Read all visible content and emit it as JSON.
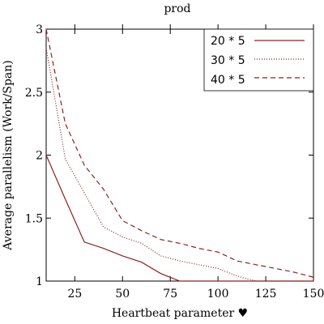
{
  "chart_data": {
    "type": "line",
    "title": "prod",
    "xlabel": "Heartbeat parameter ♥",
    "ylabel": "Average parallelism (Work/Span)",
    "xlim": [
      10,
      150
    ],
    "ylim": [
      1,
      3
    ],
    "xticks": [
      25,
      50,
      75,
      100,
      125,
      150
    ],
    "yticks": [
      1,
      1.5,
      2,
      2.5,
      3
    ],
    "xtick_labels": [
      "25",
      "50",
      "75",
      "100",
      "125",
      "150"
    ],
    "ytick_labels": [
      "1",
      "1.5",
      "2",
      "2.5",
      "3"
    ],
    "grid": false,
    "legend_position": "top-right",
    "series_color": "#8b2323",
    "series": [
      {
        "name": "20 * 5",
        "dash": "solid",
        "x": [
          10,
          20,
          30,
          40,
          50,
          60,
          70,
          80,
          90,
          100,
          110,
          120,
          130,
          140,
          150
        ],
        "values": [
          2.0,
          1.65,
          1.31,
          1.26,
          1.2,
          1.15,
          1.06,
          1.0,
          1.0,
          1.0,
          1.0,
          1.0,
          1.0,
          1.0,
          1.0
        ]
      },
      {
        "name": "30 * 5",
        "dash": "dotted",
        "x": [
          10,
          20,
          30,
          40,
          50,
          60,
          70,
          80,
          90,
          100,
          110,
          120,
          130,
          140,
          150
        ],
        "values": [
          2.85,
          1.97,
          1.7,
          1.43,
          1.35,
          1.3,
          1.2,
          1.16,
          1.13,
          1.1,
          1.04,
          1.0,
          1.0,
          1.0,
          1.0
        ]
      },
      {
        "name": "40 * 5",
        "dash": "dashed",
        "x": [
          10,
          20,
          30,
          40,
          50,
          60,
          70,
          80,
          90,
          100,
          110,
          120,
          130,
          140,
          150
        ],
        "values": [
          3.0,
          2.25,
          1.92,
          1.73,
          1.48,
          1.4,
          1.33,
          1.3,
          1.26,
          1.23,
          1.16,
          1.13,
          1.1,
          1.07,
          1.03
        ]
      }
    ]
  }
}
